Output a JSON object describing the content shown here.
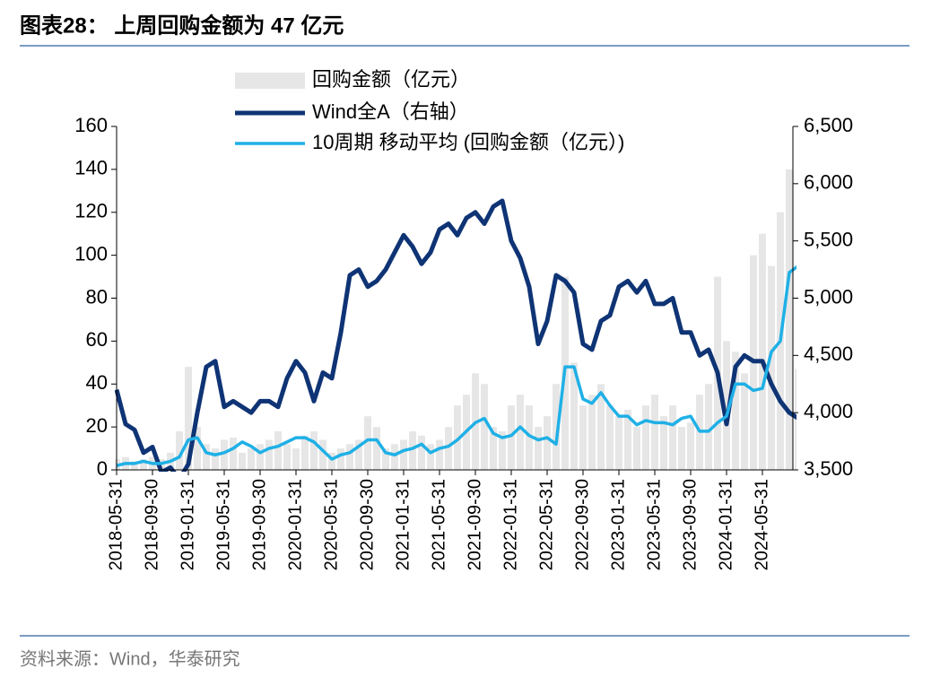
{
  "header": {
    "title": "图表28： 上周回购金额为 47 亿元"
  },
  "chart_data": {
    "type": "combo",
    "categories": [
      "2018-05-31",
      null,
      null,
      null,
      "2018-09-30",
      null,
      null,
      null,
      "2019-01-31",
      null,
      null,
      null,
      "2019-05-31",
      null,
      null,
      null,
      "2019-09-30",
      null,
      null,
      null,
      "2020-01-31",
      null,
      null,
      null,
      "2020-05-31",
      null,
      null,
      null,
      "2020-09-30",
      null,
      null,
      null,
      "2021-01-31",
      null,
      null,
      null,
      "2021-05-31",
      null,
      null,
      null,
      "2021-09-30",
      null,
      null,
      null,
      "2022-01-31",
      null,
      null,
      null,
      "2022-05-31",
      null,
      null,
      null,
      "2022-09-30",
      null,
      null,
      null,
      "2023-01-31",
      null,
      null,
      null,
      "2023-05-31",
      null,
      null,
      null,
      "2023-09-30",
      null,
      null,
      null,
      "2024-01-31",
      null,
      null,
      null,
      "2024-05-31",
      null,
      null,
      null,
      null
    ],
    "series": [
      {
        "name": "回购金额（亿元）",
        "type": "bar",
        "color": "#e6e6e6",
        "values": [
          5,
          6,
          4,
          5,
          6,
          5,
          8,
          18,
          48,
          20,
          12,
          10,
          14,
          15,
          8,
          10,
          12,
          14,
          18,
          12,
          10,
          16,
          18,
          14,
          8,
          10,
          12,
          14,
          25,
          20,
          10,
          12,
          14,
          18,
          16,
          12,
          14,
          20,
          30,
          35,
          45,
          40,
          20,
          18,
          30,
          35,
          30,
          20,
          25,
          40,
          90,
          50,
          30,
          35,
          40,
          30,
          25,
          28,
          20,
          30,
          35,
          25,
          30,
          20,
          22,
          35,
          40,
          90,
          60,
          55,
          45,
          100,
          110,
          95,
          120,
          140,
          47
        ]
      },
      {
        "name": "Wind全A（右轴）",
        "type": "line",
        "axis": "y2",
        "color": "#0f3475",
        "values": [
          4200,
          3900,
          3850,
          3650,
          3700,
          3480,
          3520,
          3420,
          3550,
          4000,
          4400,
          4450,
          4050,
          4100,
          4050,
          4000,
          4100,
          4100,
          4050,
          4300,
          4450,
          4350,
          4100,
          4350,
          4300,
          4700,
          5200,
          5250,
          5100,
          5150,
          5250,
          5400,
          5550,
          5450,
          5300,
          5400,
          5600,
          5650,
          5550,
          5700,
          5750,
          5650,
          5800,
          5850,
          5500,
          5350,
          5100,
          4600,
          4800,
          5200,
          5150,
          5050,
          4600,
          4550,
          4800,
          4850,
          5100,
          5150,
          5050,
          5150,
          4950,
          4950,
          5000,
          4700,
          4700,
          4500,
          4550,
          4350,
          3900,
          4400,
          4500,
          4450,
          4450,
          4250,
          4100,
          4000,
          3950
        ]
      },
      {
        "name": "10周期 移动平均 (回购金额（亿元）)",
        "type": "line",
        "color": "#1fb0e6",
        "values": [
          2,
          3,
          3,
          4,
          3,
          3,
          4,
          6,
          14,
          15,
          8,
          7,
          8,
          10,
          13,
          11,
          8,
          10,
          11,
          13,
          15,
          15,
          13,
          9,
          5,
          7,
          8,
          11,
          14,
          14,
          8,
          7,
          9,
          10,
          12,
          8,
          10,
          11,
          14,
          18,
          22,
          24,
          17,
          15,
          16,
          20,
          16,
          14,
          15,
          12,
          48,
          48,
          33,
          31,
          36,
          30,
          25,
          25,
          21,
          23,
          22,
          22,
          21,
          24,
          25,
          18,
          18,
          22,
          25,
          40,
          40,
          37,
          38,
          55,
          60,
          92,
          95
        ]
      }
    ],
    "ylim": [
      0,
      160
    ],
    "yticks": [
      0,
      20,
      40,
      60,
      80,
      100,
      120,
      140,
      160
    ],
    "y2lim": [
      3500,
      6500
    ],
    "y2ticks": [
      {
        "value": 3500,
        "label": "3,500"
      },
      {
        "value": 4000,
        "label": "4,000"
      },
      {
        "value": 4500,
        "label": "4,500"
      },
      {
        "value": 5000,
        "label": "5,000"
      },
      {
        "value": 5500,
        "label": "5,500"
      },
      {
        "value": 6000,
        "label": "6,000"
      },
      {
        "value": 6500,
        "label": "6,500"
      }
    ],
    "source": "资料来源：Wind，华泰研究"
  }
}
